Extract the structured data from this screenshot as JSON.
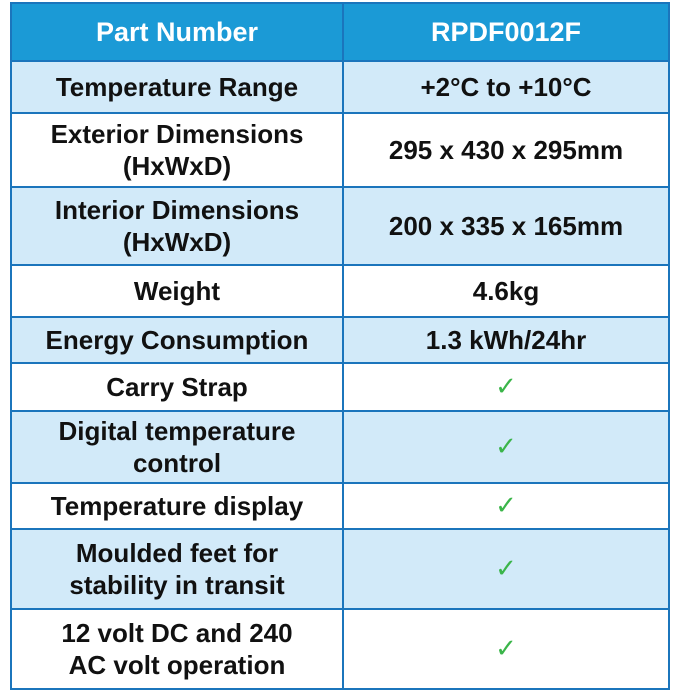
{
  "table": {
    "header": [
      "Part Number",
      "RPDF0012F"
    ],
    "rows": [
      {
        "label": [
          "Temperature Range"
        ],
        "value": "+2°C to +10°C"
      },
      {
        "label": [
          "Exterior Dimensions",
          "(HxWxD)"
        ],
        "value": "295 x 430 x 295mm"
      },
      {
        "label": [
          "Interior Dimensions",
          "(HxWxD)"
        ],
        "value": "200 x 335 x 165mm"
      },
      {
        "label": [
          "Weight"
        ],
        "value": "4.6kg"
      },
      {
        "label": [
          "Energy Consumption"
        ],
        "value": "1.3 kWh/24hr"
      },
      {
        "label": [
          "Carry Strap"
        ],
        "value": "✓"
      },
      {
        "label": [
          "Digital temperature",
          "control"
        ],
        "value": "✓"
      },
      {
        "label": [
          "Temperature display"
        ],
        "value": "✓"
      },
      {
        "label": [
          "Moulded feet for",
          "stability in transit"
        ],
        "value": "✓"
      },
      {
        "label": [
          "12 volt DC and 240",
          "AC volt operation"
        ],
        "value": "✓"
      }
    ]
  }
}
